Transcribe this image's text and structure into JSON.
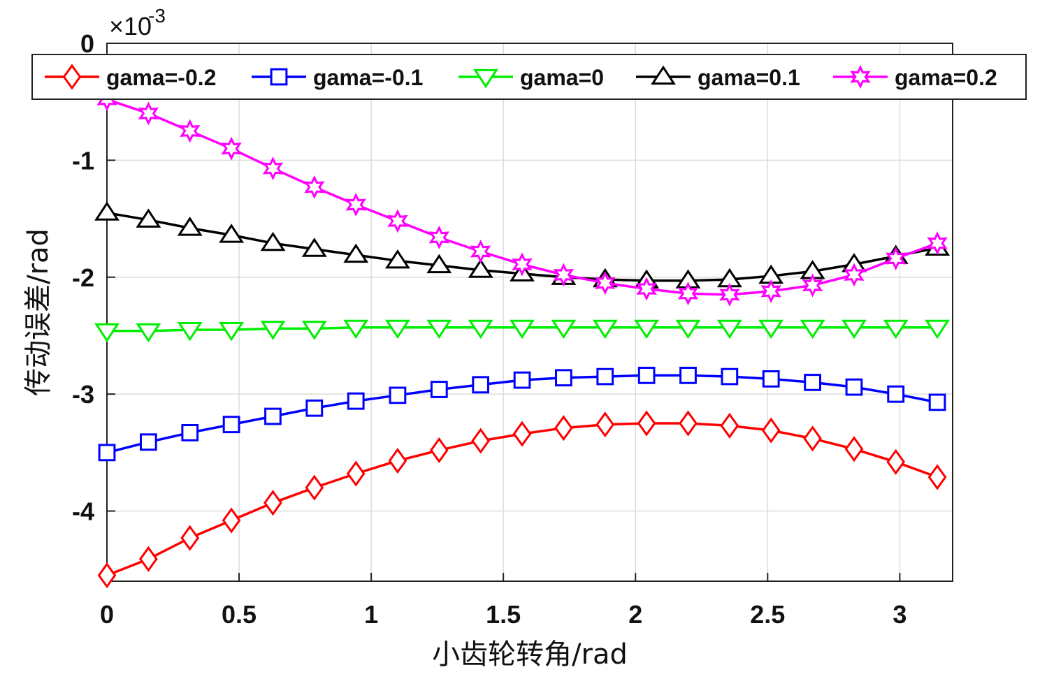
{
  "chart_data": {
    "type": "line",
    "xlabel": "小齿轮转角/rad",
    "ylabel": "传动误差/rad",
    "xlim": [
      0,
      3.2
    ],
    "ylim": [
      -4.6,
      0
    ],
    "y_multiplier": "×10",
    "y_exponent": "-3",
    "xticks": [
      0,
      0.5,
      1,
      1.5,
      2,
      2.5,
      3
    ],
    "xtick_labels": [
      "0",
      "0.5",
      "1",
      "1.5",
      "2",
      "2.5",
      "3"
    ],
    "yticks": [
      0,
      -1,
      -2,
      -3,
      -4
    ],
    "ytick_labels": [
      "0",
      "-1",
      "-2",
      "-3",
      "-4"
    ],
    "grid": true,
    "legend_position": "top",
    "x": [
      0,
      0.157,
      0.314,
      0.471,
      0.628,
      0.785,
      0.942,
      1.1,
      1.257,
      1.414,
      1.571,
      1.728,
      1.885,
      2.042,
      2.199,
      2.356,
      2.513,
      2.67,
      2.827,
      2.985,
      3.142
    ],
    "series": [
      {
        "name": "gama=-0.2",
        "color": "#ff0000",
        "marker": "diamond",
        "values": [
          -4.55,
          -4.41,
          -4.23,
          -4.08,
          -3.93,
          -3.8,
          -3.68,
          -3.57,
          -3.48,
          -3.4,
          -3.34,
          -3.29,
          -3.26,
          -3.25,
          -3.25,
          -3.27,
          -3.31,
          -3.38,
          -3.47,
          -3.58,
          -3.71
        ]
      },
      {
        "name": "gama=-0.1",
        "color": "#0000ff",
        "marker": "square",
        "values": [
          -3.5,
          -3.41,
          -3.33,
          -3.26,
          -3.19,
          -3.12,
          -3.06,
          -3.01,
          -2.96,
          -2.92,
          -2.88,
          -2.86,
          -2.85,
          -2.84,
          -2.84,
          -2.85,
          -2.87,
          -2.9,
          -2.94,
          -3.0,
          -3.07
        ]
      },
      {
        "name": "gama=0",
        "color": "#00ee00",
        "marker": "triangle-down",
        "values": [
          -2.46,
          -2.46,
          -2.45,
          -2.45,
          -2.44,
          -2.44,
          -2.43,
          -2.43,
          -2.43,
          -2.43,
          -2.43,
          -2.43,
          -2.43,
          -2.43,
          -2.43,
          -2.43,
          -2.43,
          -2.43,
          -2.43,
          -2.43,
          -2.43
        ]
      },
      {
        "name": "gama=0.1",
        "color": "#000000",
        "marker": "triangle-up",
        "values": [
          -1.45,
          -1.51,
          -1.58,
          -1.64,
          -1.71,
          -1.76,
          -1.81,
          -1.86,
          -1.9,
          -1.94,
          -1.97,
          -2.0,
          -2.02,
          -2.03,
          -2.03,
          -2.02,
          -1.99,
          -1.95,
          -1.89,
          -1.82,
          -1.75
        ]
      },
      {
        "name": "gama=0.2",
        "color": "#ff00ff",
        "marker": "hexagram",
        "values": [
          -0.48,
          -0.6,
          -0.75,
          -0.9,
          -1.07,
          -1.23,
          -1.38,
          -1.52,
          -1.66,
          -1.78,
          -1.89,
          -1.98,
          -2.05,
          -2.1,
          -2.14,
          -2.15,
          -2.12,
          -2.07,
          -1.98,
          -1.84,
          -1.71
        ]
      }
    ]
  }
}
